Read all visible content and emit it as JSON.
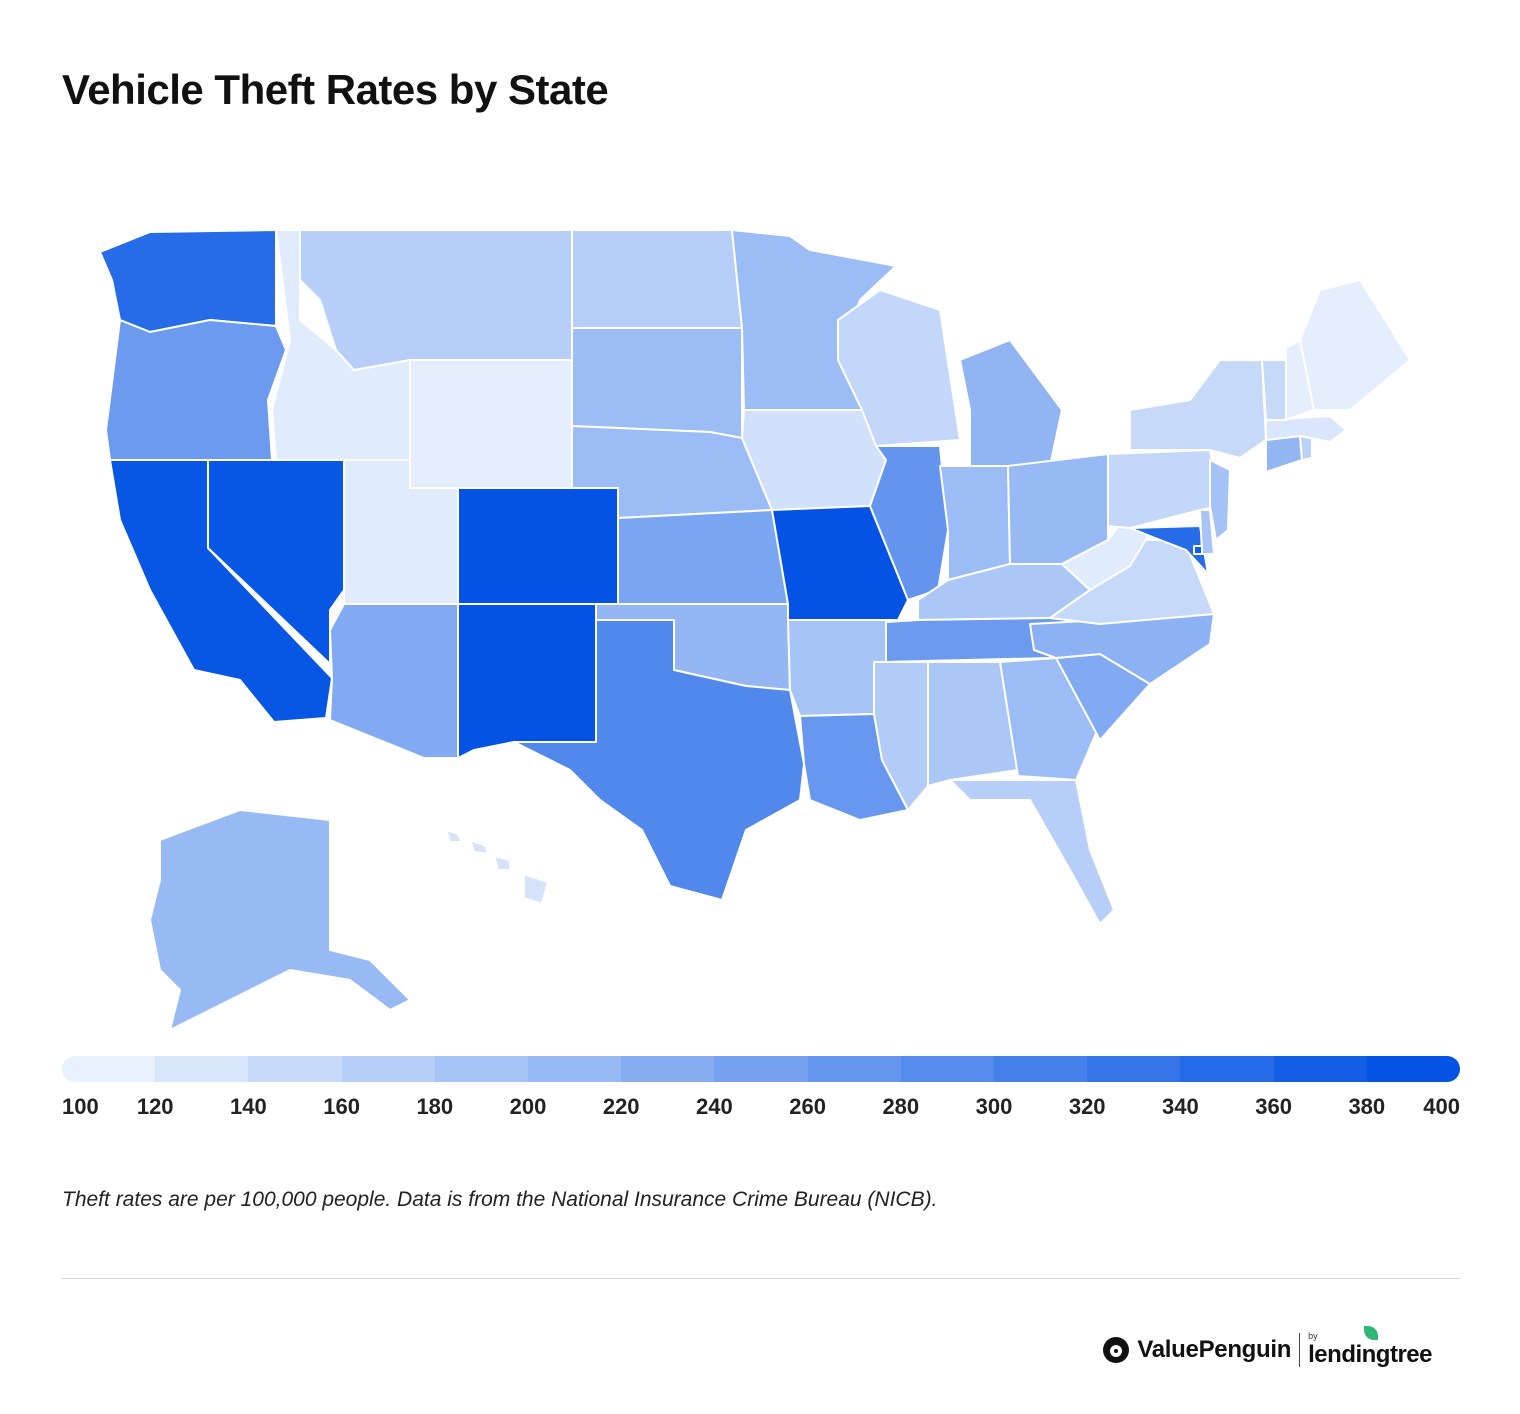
{
  "title": "Vehicle Theft Rates by State",
  "legend": {
    "ticks": [
      "100",
      "120",
      "140",
      "160",
      "180",
      "200",
      "220",
      "240",
      "260",
      "280",
      "300",
      "320",
      "340",
      "360",
      "380",
      "400"
    ],
    "min": 100,
    "max": 400,
    "color_low": "#e8f1fd",
    "color_high": "#0453e4"
  },
  "note": "Theft rates are per 100,000 people. Data is from the National Insurance Crime Bureau (NICB).",
  "brand": {
    "name": "ValuePenguin",
    "by": "by",
    "partner": "lendingtree",
    "icons": [
      "penguin-icon",
      "leaf-icon"
    ]
  },
  "map_data": {
    "type": "choropleth",
    "unit": "thefts per 100,000 people",
    "states": [
      {
        "id": "WA",
        "value": 355
      },
      {
        "id": "OR",
        "value": 265
      },
      {
        "id": "CA",
        "value": 395
      },
      {
        "id": "NV",
        "value": 395
      },
      {
        "id": "ID",
        "value": 110
      },
      {
        "id": "MT",
        "value": 165
      },
      {
        "id": "WY",
        "value": 105
      },
      {
        "id": "UT",
        "value": 110
      },
      {
        "id": "CO",
        "value": 400
      },
      {
        "id": "AZ",
        "value": 235
      },
      {
        "id": "NM",
        "value": 400
      },
      {
        "id": "ND",
        "value": 165
      },
      {
        "id": "SD",
        "value": 200
      },
      {
        "id": "NE",
        "value": 200
      },
      {
        "id": "KS",
        "value": 245
      },
      {
        "id": "OK",
        "value": 210
      },
      {
        "id": "TX",
        "value": 300
      },
      {
        "id": "MN",
        "value": 200
      },
      {
        "id": "IA",
        "value": 130
      },
      {
        "id": "MO",
        "value": 400
      },
      {
        "id": "AR",
        "value": 185
      },
      {
        "id": "LA",
        "value": 270
      },
      {
        "id": "WI",
        "value": 150
      },
      {
        "id": "IL",
        "value": 275
      },
      {
        "id": "MI",
        "value": 215
      },
      {
        "id": "IN",
        "value": 200
      },
      {
        "id": "OH",
        "value": 205
      },
      {
        "id": "KY",
        "value": 180
      },
      {
        "id": "TN",
        "value": 265
      },
      {
        "id": "MS",
        "value": 170
      },
      {
        "id": "AL",
        "value": 180
      },
      {
        "id": "GA",
        "value": 200
      },
      {
        "id": "FL",
        "value": 165
      },
      {
        "id": "SC",
        "value": 235
      },
      {
        "id": "NC",
        "value": 220
      },
      {
        "id": "VA",
        "value": 145
      },
      {
        "id": "WV",
        "value": 110
      },
      {
        "id": "MD",
        "value": 355
      },
      {
        "id": "DE",
        "value": 185
      },
      {
        "id": "PA",
        "value": 150
      },
      {
        "id": "NJ",
        "value": 190
      },
      {
        "id": "NY",
        "value": 145
      },
      {
        "id": "CT",
        "value": 210
      },
      {
        "id": "RI",
        "value": 160
      },
      {
        "id": "MA",
        "value": 120
      },
      {
        "id": "VT",
        "value": 145
      },
      {
        "id": "NH",
        "value": 105
      },
      {
        "id": "ME",
        "value": 105
      },
      {
        "id": "AK",
        "value": 205
      },
      {
        "id": "HI",
        "value": 125
      },
      {
        "id": "DC",
        "value": 380
      }
    ]
  }
}
